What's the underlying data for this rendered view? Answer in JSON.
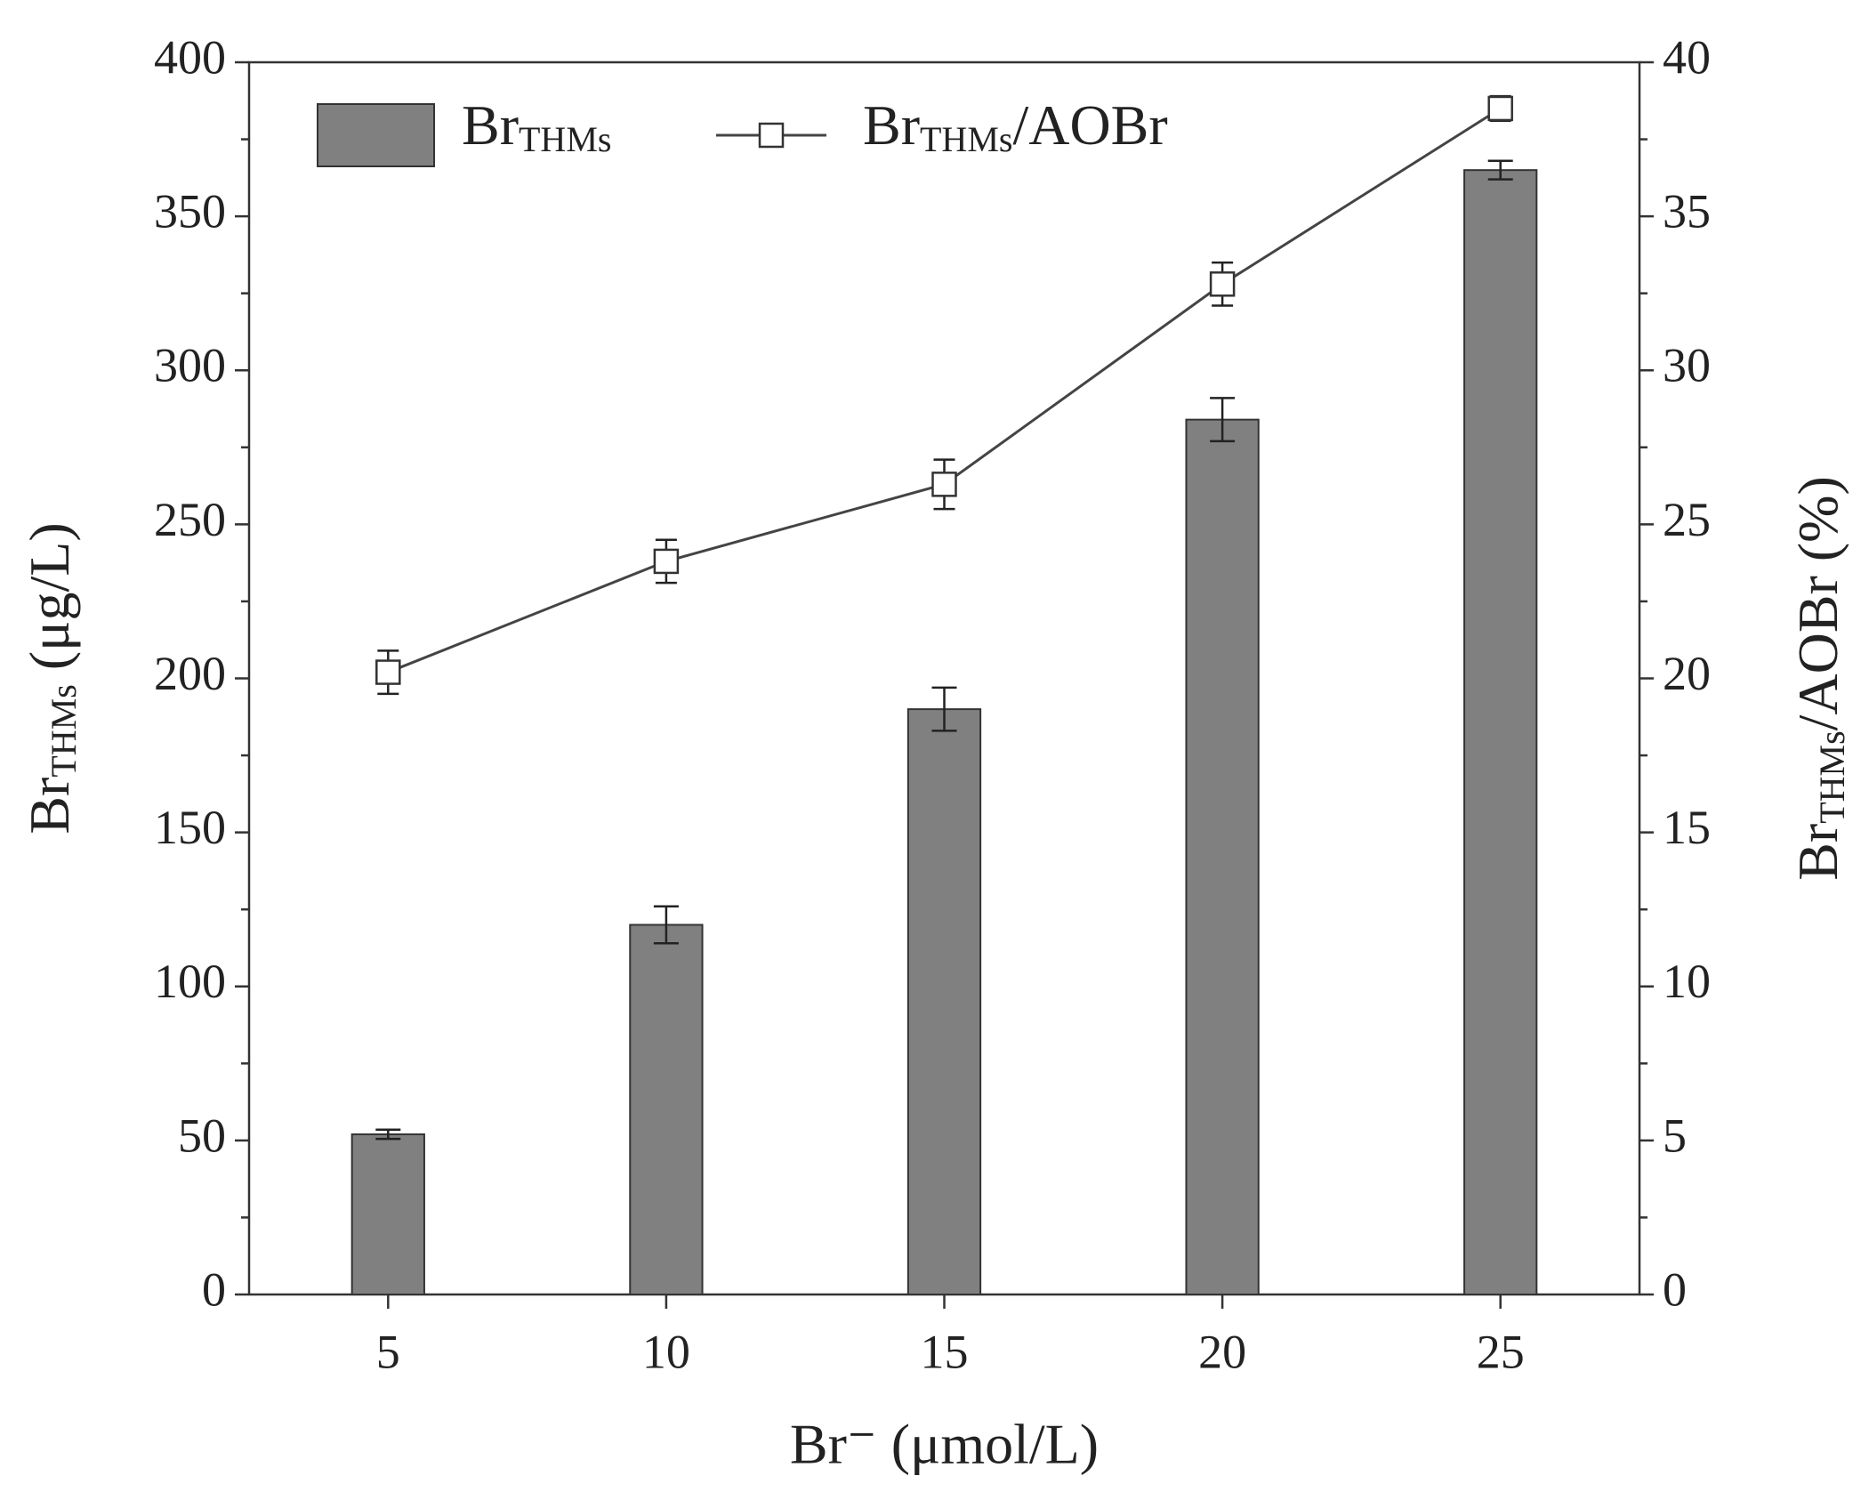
{
  "chart_data": {
    "type": "combo",
    "categories": [
      5,
      10,
      15,
      20,
      25
    ],
    "xlabel": "Br⁻ (μmol/L)",
    "ylabel": [
      "Br",
      "THMs",
      " (μg/L)"
    ],
    "y2label": [
      "Br",
      "THMs",
      "/AOBr (%)"
    ],
    "ylim": [
      0,
      400
    ],
    "yticks": [
      0,
      50,
      100,
      150,
      200,
      250,
      300,
      350,
      400
    ],
    "yminorticks": [
      25,
      75,
      125,
      175,
      225,
      275,
      325,
      375
    ],
    "y2lim": [
      0,
      40
    ],
    "y2ticks": [
      0,
      5,
      10,
      15,
      20,
      25,
      30,
      35,
      40
    ],
    "y2minorticks": [
      2.5,
      7.5,
      12.5,
      17.5,
      22.5,
      27.5,
      32.5,
      37.5
    ],
    "legend": "upper left",
    "series": [
      {
        "name": [
          "Br",
          "THMs"
        ],
        "type": "bar",
        "color": "#808080",
        "values": [
          52,
          120,
          190,
          284,
          365
        ],
        "errors": [
          1.5,
          6,
          7,
          7,
          3
        ]
      },
      {
        "name": [
          "Br",
          "THMs",
          "/AOBr"
        ],
        "type": "line",
        "axis": "y2",
        "color": "#444444",
        "values": [
          20.2,
          23.8,
          26.3,
          32.8,
          38.5
        ],
        "errors": [
          0.7,
          0.7,
          0.8,
          0.7,
          0.4
        ]
      }
    ]
  }
}
